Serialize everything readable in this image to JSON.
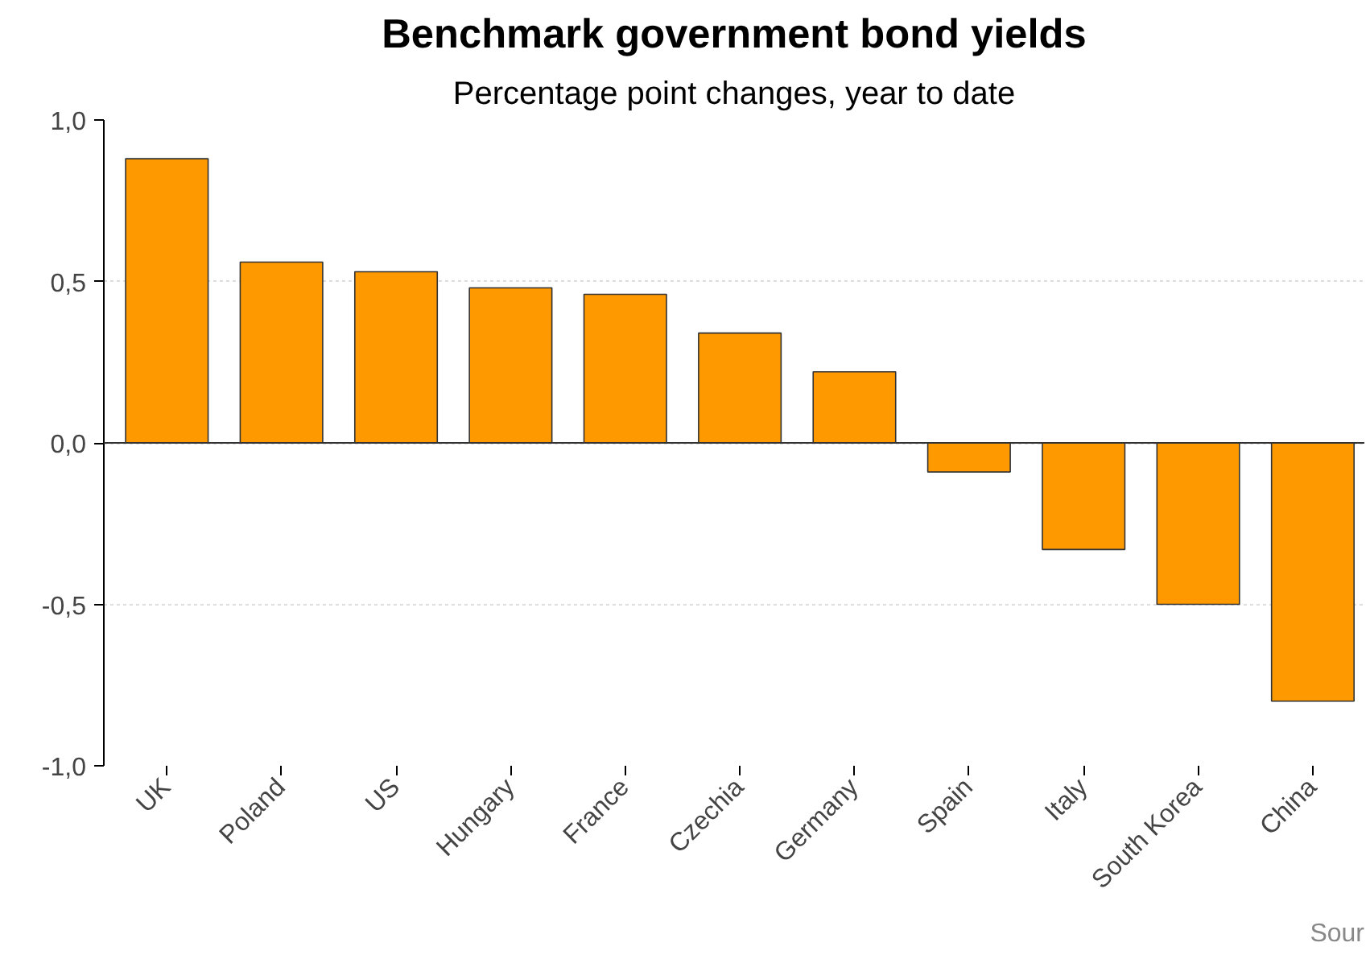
{
  "chart_data": {
    "type": "bar",
    "title": "Benchmark government bond yields",
    "subtitle": "Percentage point changes, year to date",
    "categories": [
      "UK",
      "Poland",
      "US",
      "Hungary",
      "France",
      "Czechia",
      "Germany",
      "Spain",
      "Italy",
      "South Korea",
      "China"
    ],
    "values": [
      0.88,
      0.56,
      0.53,
      0.48,
      0.46,
      0.34,
      0.22,
      -0.09,
      -0.33,
      -0.5,
      -0.8
    ],
    "color": "#ff9900",
    "ylim": [
      -1,
      1
    ],
    "yticks": [
      {
        "value": -1,
        "label": "-1,0"
      },
      {
        "value": -0.5,
        "label": "-0,5"
      },
      {
        "value": 0,
        "label": "0,0"
      },
      {
        "value": 0.5,
        "label": "0,5"
      },
      {
        "value": 1,
        "label": "1,0"
      }
    ],
    "grid": "y",
    "annotations": [
      "Sour"
    ]
  }
}
